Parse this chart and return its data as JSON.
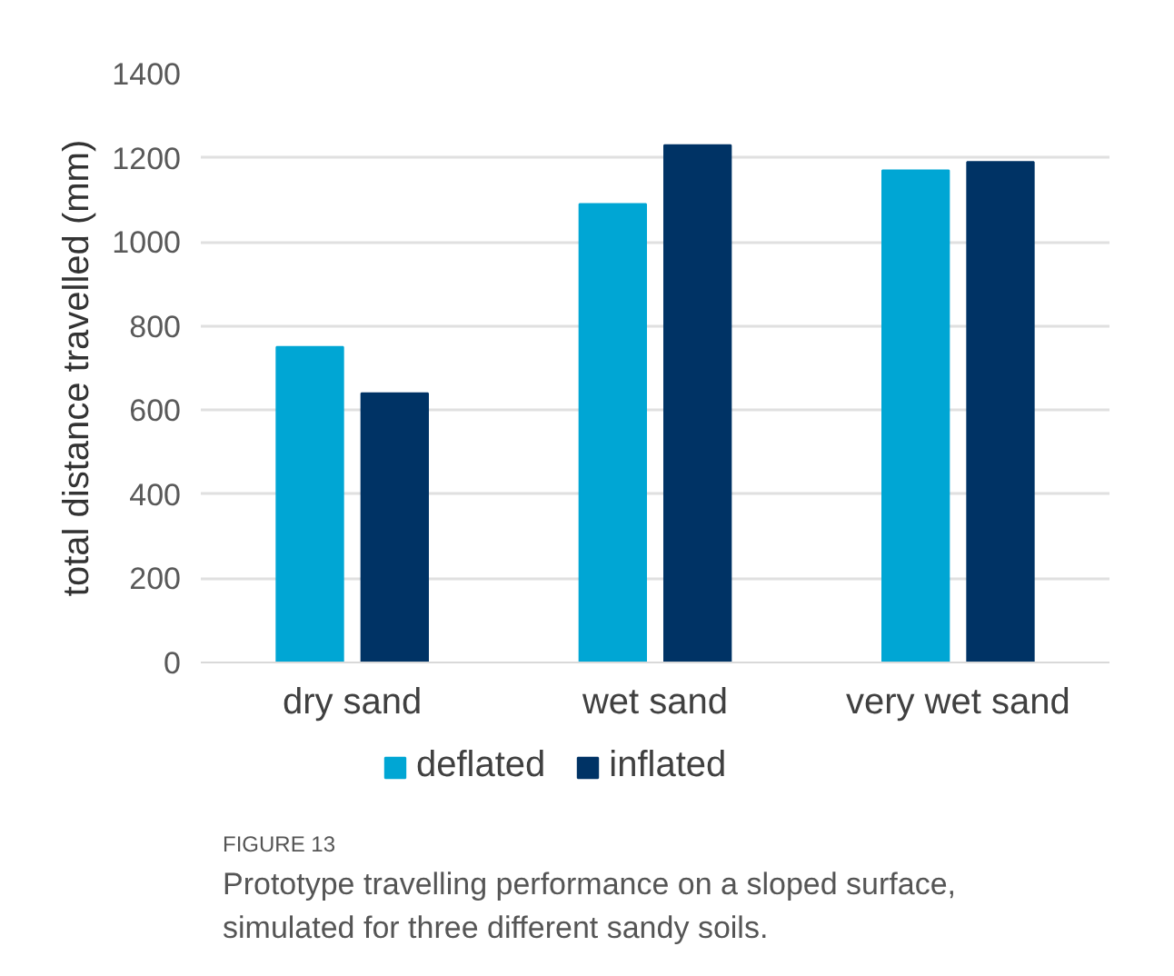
{
  "chart_data": {
    "type": "bar",
    "ylabel": "total distance travelled (mm)",
    "categories": [
      "dry sand",
      "wet sand",
      "very wet sand"
    ],
    "series": [
      {
        "name": "deflated",
        "color": "#00a6d4",
        "values": [
          750,
          1090,
          1170
        ]
      },
      {
        "name": "inflated",
        "color": "#003365",
        "values": [
          640,
          1230,
          1190
        ]
      }
    ],
    "ylim": [
      0,
      1400
    ],
    "yticks": [
      0,
      200,
      400,
      600,
      800,
      1000,
      1200,
      1400
    ],
    "grid": "y",
    "legend": "bottom",
    "annotations": [
      "FIGURE 13",
      "Prototype travelling performance on a sloped surface, simulated for three different sandy soils."
    ]
  }
}
